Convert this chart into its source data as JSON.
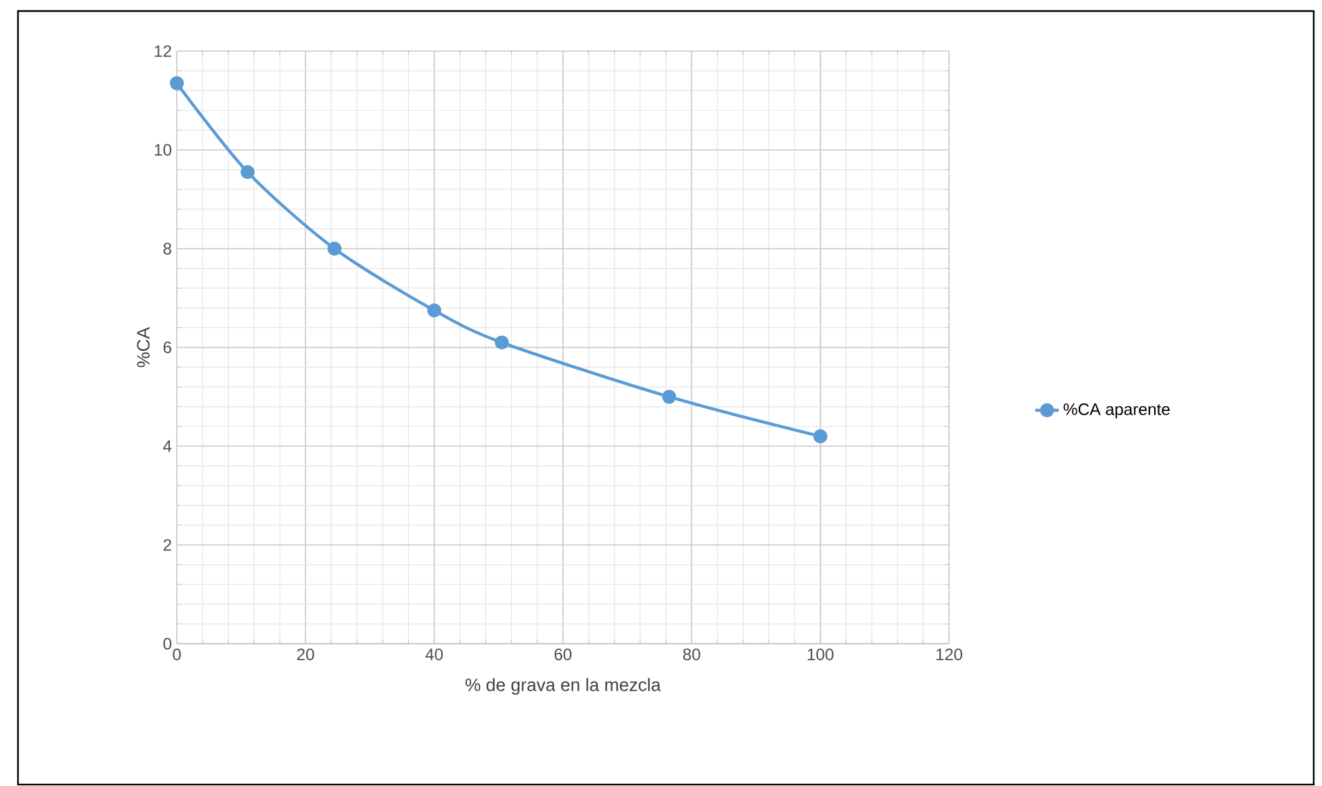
{
  "chart_data": {
    "type": "line",
    "xlabel": "% de grava en la mezcla",
    "ylabel": "%CA",
    "x": [
      0,
      11,
      24.5,
      40,
      50.5,
      76.5,
      100
    ],
    "series": [
      {
        "name": "%CA aparente",
        "color": "#5b9bd5",
        "values": [
          11.35,
          9.55,
          8.0,
          6.75,
          6.1,
          5.0,
          4.2
        ]
      }
    ],
    "xlim": [
      0,
      120
    ],
    "xticks": [
      0,
      20,
      40,
      60,
      80,
      100,
      120
    ],
    "ylim": [
      0,
      12
    ],
    "yticks": [
      0,
      2,
      4,
      6,
      8,
      10,
      12
    ],
    "grid": true,
    "legend": "right",
    "marker": "circle",
    "line_style": "solid"
  }
}
